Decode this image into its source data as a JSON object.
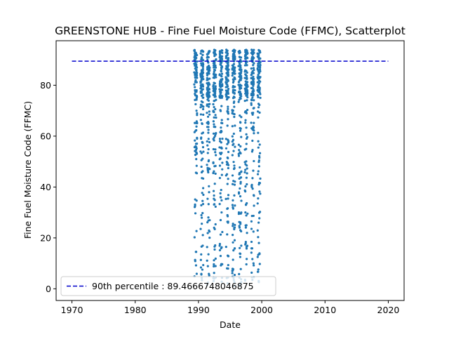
{
  "chart_data": {
    "type": "scatter",
    "title": "GREENSTONE HUB - Fine Fuel Moisture Code (FFMC), Scatterplot",
    "xlabel": "Date",
    "ylabel": "Fine Fuel Moisture Code (FFMC)",
    "xlim": [
      1967.5,
      2022.5
    ],
    "ylim": [
      -4.6,
      97.5
    ],
    "x_ticks": [
      1970,
      1980,
      1990,
      2000,
      2010,
      2020
    ],
    "y_ticks": [
      0,
      20,
      40,
      60,
      80
    ],
    "grid": false,
    "legend": {
      "placement": "lower-left",
      "entries": [
        "90th percentile : 89.4666748046875"
      ]
    },
    "reference_line": {
      "name": "90th percentile : 89.4666748046875",
      "value": 89.4666748046875,
      "x_range": [
        1970,
        2020
      ],
      "color": "#0000cc",
      "style": "dashed"
    },
    "series": [
      {
        "color": "#1f77b4",
        "fire_seasons": [
          1989,
          1990,
          1991,
          1992,
          1993,
          1994,
          1995,
          1996,
          1997,
          1998,
          1999
        ],
        "season_window": [
          0.33,
          0.78
        ],
        "value_range": [
          1,
          94
        ],
        "points_per_season": 120
      }
    ]
  }
}
